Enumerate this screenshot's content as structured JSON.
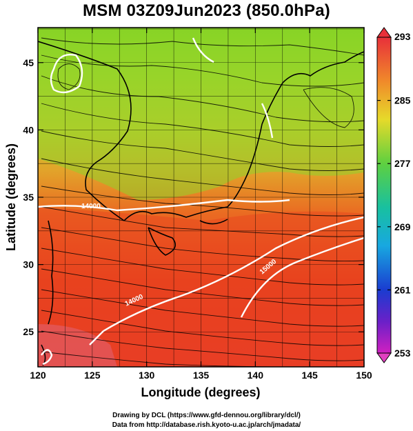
{
  "title": "MSM 03Z09Jun2023 (850.0hPa)",
  "axes": {
    "x_title": "Longitude (degrees)",
    "y_title": "Latitude  (degrees)",
    "x_ticks": [
      "120",
      "125",
      "130",
      "135",
      "140",
      "145",
      "150"
    ],
    "y_ticks": [
      "25",
      "30",
      "35",
      "40",
      "45"
    ]
  },
  "colorbar": {
    "labels": [
      "293",
      "285",
      "277",
      "269",
      "261",
      "253"
    ],
    "colors": [
      "#e8303a",
      "#f09a2a",
      "#e6e02a",
      "#44cc44",
      "#18b8d8",
      "#1a3cd0",
      "#d020c0"
    ]
  },
  "map": {
    "extent": {
      "lon": [
        120,
        150
      ],
      "lat": [
        22.4,
        47.6
      ]
    },
    "contour_labels": [
      "14000",
      "14000",
      "15000",
      "14000"
    ]
  },
  "footer": {
    "line1": "Drawing by DCL (https://www.gfd-dennou.org/library/dcl/)",
    "line2": "Data from http://database.rish.kyoto-u.ac.jp/arch/jmadata/"
  }
}
